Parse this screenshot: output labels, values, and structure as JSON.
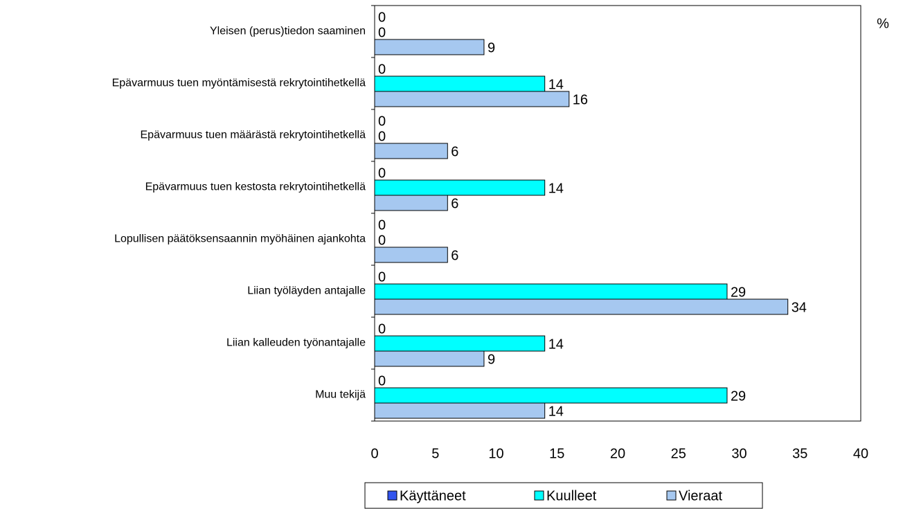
{
  "chart_data": {
    "type": "bar",
    "orientation": "horizontal",
    "x_label": "%",
    "categories": [
      "Yleisen (perus)tiedon saaminen",
      "Epävarmuus tuen myöntämisestä rekrytointihetkellä",
      "Epävarmuus tuen määrästä rekrytointihetkellä",
      "Epävarmuus tuen kestosta rekrytointihetkellä",
      "Lopullisen päätöksensaannin myöhäinen ajankohta",
      "Liian työläyden antajalle",
      "Liian kalleuden työnantajalle",
      "Muu tekijä"
    ],
    "series": [
      {
        "name": "Käyttäneet",
        "color": "#3355ee",
        "values": [
          0,
          0,
          0,
          0,
          0,
          0,
          0,
          0
        ]
      },
      {
        "name": "Kuulleet",
        "color": "#00ffff",
        "values": [
          0,
          14,
          0,
          14,
          0,
          29,
          14,
          29
        ]
      },
      {
        "name": "Vieraat",
        "color": "#a6c8f0",
        "values": [
          9,
          16,
          6,
          6,
          6,
          34,
          9,
          14
        ]
      }
    ],
    "xlim": [
      0,
      40
    ],
    "xticks": [
      0,
      5,
      10,
      15,
      20,
      25,
      30,
      35,
      40
    ],
    "grid": false,
    "legend": "bottom"
  }
}
